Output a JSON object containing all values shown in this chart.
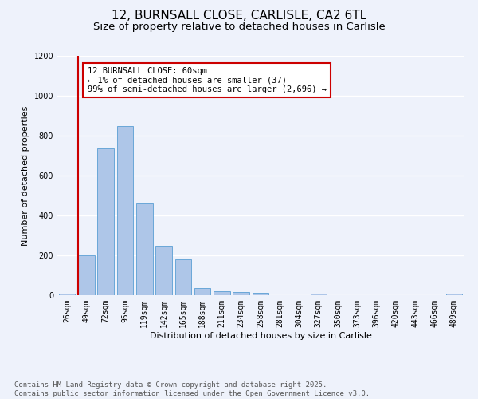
{
  "title_line1": "12, BURNSALL CLOSE, CARLISLE, CA2 6TL",
  "title_line2": "Size of property relative to detached houses in Carlisle",
  "xlabel": "Distribution of detached houses by size in Carlisle",
  "ylabel": "Number of detached properties",
  "footnote_line1": "Contains HM Land Registry data © Crown copyright and database right 2025.",
  "footnote_line2": "Contains public sector information licensed under the Open Government Licence v3.0.",
  "bar_labels": [
    "26sqm",
    "49sqm",
    "72sqm",
    "95sqm",
    "119sqm",
    "142sqm",
    "165sqm",
    "188sqm",
    "211sqm",
    "234sqm",
    "258sqm",
    "281sqm",
    "304sqm",
    "327sqm",
    "350sqm",
    "373sqm",
    "396sqm",
    "420sqm",
    "443sqm",
    "466sqm",
    "489sqm"
  ],
  "bar_values": [
    10,
    200,
    735,
    850,
    460,
    248,
    180,
    35,
    20,
    15,
    12,
    0,
    0,
    8,
    0,
    0,
    0,
    0,
    0,
    0,
    8
  ],
  "bar_color": "#aec6e8",
  "bar_edge_color": "#5a9fd4",
  "vline_color": "#cc0000",
  "annotation_text": "12 BURNSALL CLOSE: 60sqm\n← 1% of detached houses are smaller (37)\n99% of semi-detached houses are larger (2,696) →",
  "annotation_box_color": "#ffffff",
  "annotation_box_edge_color": "#cc0000",
  "ylim": [
    0,
    1200
  ],
  "yticks": [
    0,
    200,
    400,
    600,
    800,
    1000,
    1200
  ],
  "background_color": "#eef2fb",
  "plot_bg_color": "#eef2fb",
  "grid_color": "#ffffff",
  "title_fontsize": 11,
  "subtitle_fontsize": 9.5,
  "axis_label_fontsize": 8,
  "tick_fontsize": 7,
  "annotation_fontsize": 7.5,
  "footnote_fontsize": 6.5
}
